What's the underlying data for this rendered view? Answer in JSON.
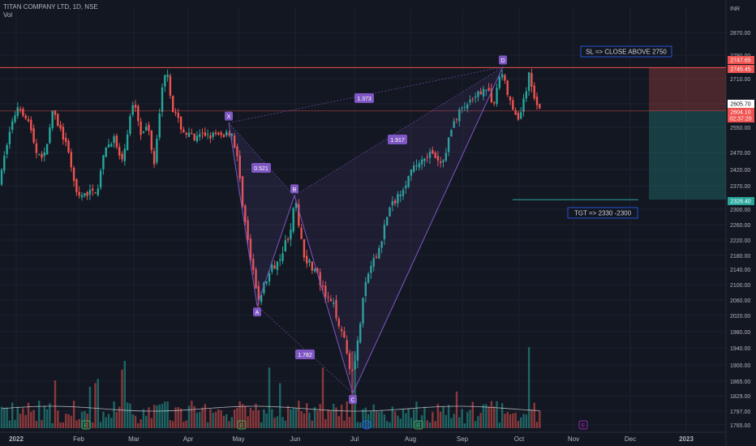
{
  "header": {
    "symbol_line": "TITAN COMPANY LTD, 1D, NSE",
    "volume_label": "Vol",
    "currency": "INR"
  },
  "colors": {
    "background": "#131722",
    "up": "#26a69a",
    "down": "#ef5350",
    "pattern": "#7e57c2",
    "grid": "#1e222d",
    "axis_text": "#b2b5be",
    "volume_ma": "#d1d4dc"
  },
  "chart_data": {
    "type": "candlestick",
    "title": "TITAN COMPANY LTD, 1D, NSE",
    "y_axis_ticks": [
      "2870.00",
      "2790.00",
      "2710.00",
      "2630.00",
      "2550.00",
      "2470.00",
      "2420.00",
      "2370.00",
      "2300.00",
      "2260.00",
      "2220.00",
      "2180.00",
      "2140.00",
      "2100.00",
      "2060.00",
      "2020.00",
      "1980.00",
      "1940.00",
      "1900.00",
      "1865.00",
      "1829.00",
      "1797.00",
      "1765.00"
    ],
    "x_axis_ticks": [
      "2022",
      "Feb",
      "Mar",
      "Apr",
      "May",
      "Jun",
      "Jul",
      "Aug",
      "Sep",
      "Oct",
      "Nov",
      "Dec",
      "2023"
    ],
    "price_labels": [
      {
        "value": "2747.65",
        "color": "#ef5350"
      },
      {
        "value": "2745.45",
        "color": "#ef5350"
      },
      {
        "value": "2605.70",
        "color": "#ffffff"
      },
      {
        "value": "2604.10",
        "color": "#ef5350"
      },
      {
        "value": "02:37:20",
        "color": "#ef5350"
      },
      {
        "value": "2328.40",
        "color": "#26a69a"
      }
    ],
    "harmonic_pattern": {
      "points": [
        {
          "label": "X",
          "price": 2565
        },
        {
          "label": "A",
          "price": 2045
        },
        {
          "label": "B",
          "price": 2340
        },
        {
          "label": "C",
          "price": 1835
        },
        {
          "label": "D",
          "price": 2750
        }
      ],
      "ratios": [
        "1.373",
        "0.521",
        "1.917",
        "1.782"
      ]
    },
    "annotations": [
      "SL => CLOSE ABOVE 2750",
      "TGT => 2330 -2300"
    ],
    "stop_level": 2747.65,
    "entry_level": 2605.7,
    "target_level": 2328.4,
    "event_markers": [
      "E",
      "E",
      "D",
      "E",
      "E"
    ]
  }
}
